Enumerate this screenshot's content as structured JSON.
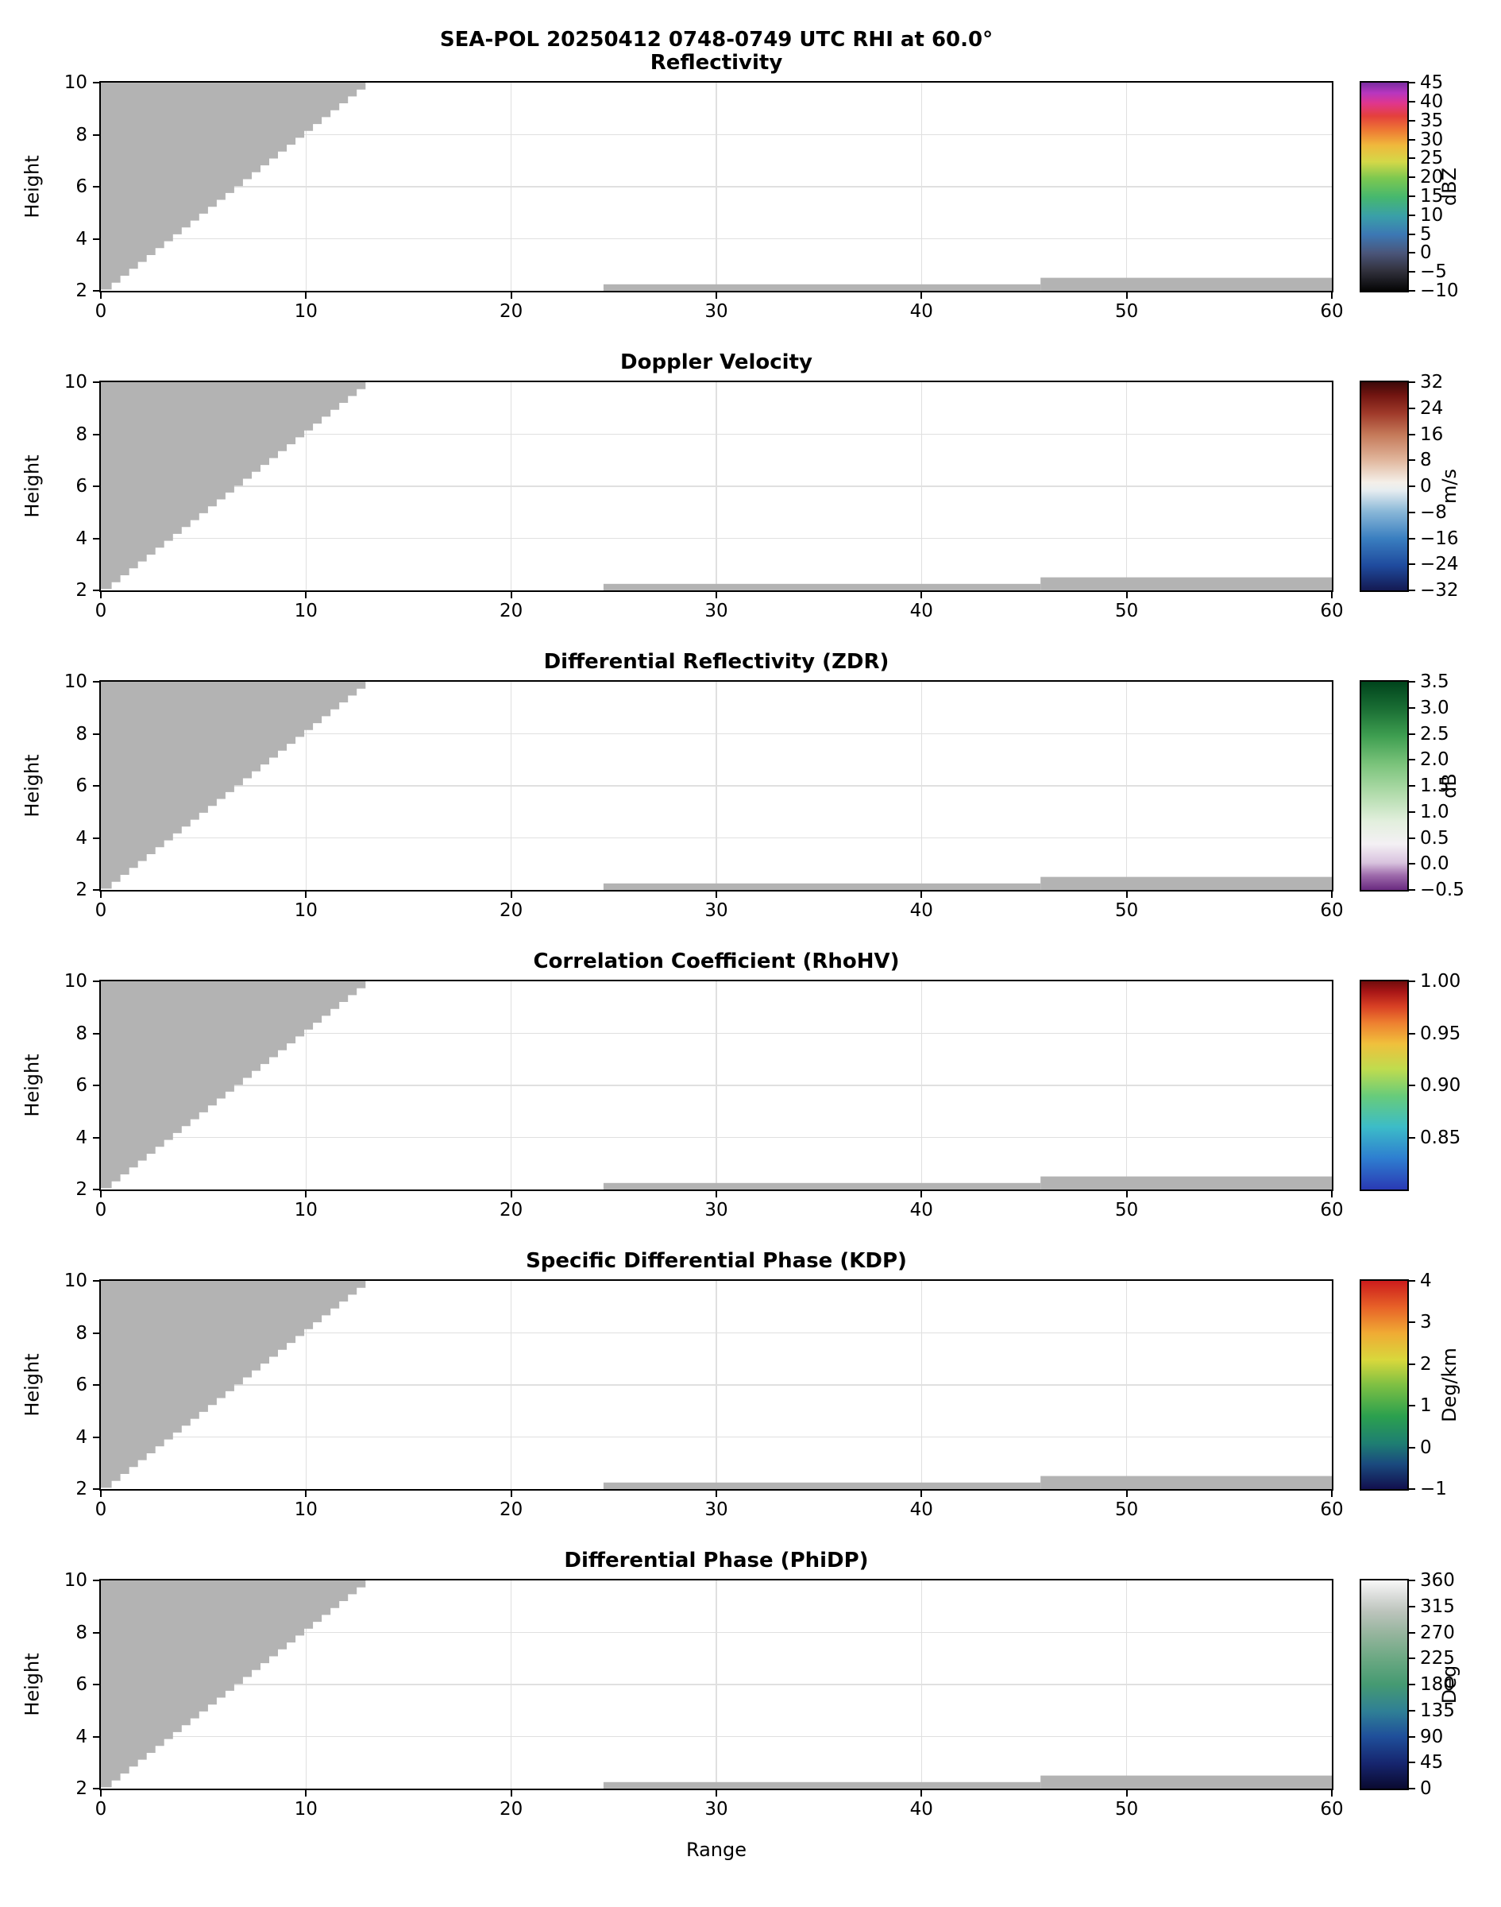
{
  "figure": {
    "suptitle": "SEA-POL 20250412 0748-0749 UTC RHI at 60.0°",
    "xlabel": "Range",
    "background": "#ffffff"
  },
  "chart_data": {
    "type": "heatmap",
    "description": "Six vertically stacked RHI radar cross-section panels (height vs range) sharing identical echo geometry. All echo regions render as uniform light gray (masked / below color scale): a stepped wedge in the upper-left rising from range 0 at height ~2 to range ~13 at height 10, plus a thin echo layer near height 2.0-2.5 spanning ranges ~24.5-60 (slightly deeper beyond range ~46). Each panel has its own colorbar on the right.",
    "x": {
      "label": "Range",
      "lim": [
        0,
        60
      ],
      "ticks": [
        0,
        10,
        20,
        30,
        40,
        50,
        60
      ],
      "tick_labels": [
        "0",
        "10",
        "20",
        "30",
        "40",
        "50",
        "60"
      ]
    },
    "y": {
      "label": "Height",
      "lim": [
        2,
        10
      ],
      "ticks": [
        2,
        4,
        6,
        8,
        10
      ],
      "tick_labels": [
        "2",
        "4",
        "6",
        "8",
        "10"
      ]
    },
    "mask_color": "#b3b3b3",
    "grid_on": true,
    "regions": {
      "wedge": {
        "x_start": 0.1,
        "y_start": 2.05,
        "x_end": 12.9,
        "y_end": 10.0,
        "steps": 30
      },
      "strips": [
        {
          "x0": 24.5,
          "x1": 45.8,
          "y0": 2.0,
          "y1": 2.25
        },
        {
          "x0": 45.8,
          "x1": 60.0,
          "y0": 2.0,
          "y1": 2.5
        }
      ]
    },
    "panels": [
      {
        "title": "Reflectivity",
        "unit": "dBZ",
        "vmin": -10,
        "vmax": 45,
        "cb_ticks": [
          45,
          40,
          35,
          30,
          25,
          20,
          15,
          10,
          5,
          0,
          -5,
          -10
        ],
        "cb_tick_labels": [
          "45",
          "40",
          "35",
          "30",
          "25",
          "20",
          "15",
          "10",
          "5",
          "0",
          "−5",
          "−10"
        ],
        "gradient": [
          [
            "#050505",
            0
          ],
          [
            "#33333f",
            0.1
          ],
          [
            "#4a5579",
            0.18
          ],
          [
            "#3c78b4",
            0.27
          ],
          [
            "#3aa0a8",
            0.36
          ],
          [
            "#46b86e",
            0.45
          ],
          [
            "#7cc850",
            0.54
          ],
          [
            "#d4d848",
            0.62
          ],
          [
            "#f0b83c",
            0.7
          ],
          [
            "#ee7a34",
            0.77
          ],
          [
            "#e4403c",
            0.84
          ],
          [
            "#e0368c",
            0.9
          ],
          [
            "#b836c0",
            0.95
          ],
          [
            "#7a2ea0",
            1
          ]
        ]
      },
      {
        "title": "Doppler Velocity",
        "unit": "m/s",
        "vmin": -32,
        "vmax": 32,
        "cb_ticks": [
          32,
          24,
          16,
          8,
          0,
          -8,
          -16,
          -24,
          -32
        ],
        "cb_tick_labels": [
          "32",
          "24",
          "16",
          "8",
          "0",
          "−8",
          "−16",
          "−24",
          "−32"
        ],
        "gradient": [
          [
            "#141a52",
            0
          ],
          [
            "#1f4b9e",
            0.12
          ],
          [
            "#3a7fc0",
            0.25
          ],
          [
            "#8ab8d8",
            0.38
          ],
          [
            "#e6edf0",
            0.48
          ],
          [
            "#f4efe8",
            0.52
          ],
          [
            "#e0b49a",
            0.63
          ],
          [
            "#c47858",
            0.75
          ],
          [
            "#a03a2a",
            0.85
          ],
          [
            "#701410",
            0.94
          ],
          [
            "#3c0a0a",
            1
          ]
        ]
      },
      {
        "title": "Differential Reflectivity (ZDR)",
        "unit": "dB",
        "vmin": -0.5,
        "vmax": 3.5,
        "cb_ticks": [
          3.5,
          3.0,
          2.5,
          2.0,
          1.5,
          1.0,
          0.5,
          0.0,
          -0.5
        ],
        "cb_tick_labels": [
          "3.5",
          "3.0",
          "2.5",
          "2.0",
          "1.5",
          "1.0",
          "0.5",
          "0.0",
          "−0.5"
        ],
        "gradient": [
          [
            "#6a2a80",
            0
          ],
          [
            "#9e6bab",
            0.07
          ],
          [
            "#d8c2de",
            0.13
          ],
          [
            "#f4f0f4",
            0.22
          ],
          [
            "#e2efdd",
            0.33
          ],
          [
            "#b2dcac",
            0.46
          ],
          [
            "#7cc47c",
            0.6
          ],
          [
            "#3e9e50",
            0.74
          ],
          [
            "#1a6e34",
            0.87
          ],
          [
            "#00441c",
            1
          ]
        ]
      },
      {
        "title": "Correlation Coefficient (RhoHV)",
        "unit": "",
        "vmin": 0.8,
        "vmax": 1.0,
        "cb_ticks": [
          1.0,
          0.95,
          0.9,
          0.85
        ],
        "cb_tick_labels": [
          "1.00",
          "0.95",
          "0.90",
          "0.85"
        ],
        "gradient": [
          [
            "#2a3ab4",
            0
          ],
          [
            "#2e7ed0",
            0.15
          ],
          [
            "#3cbcc8",
            0.3
          ],
          [
            "#68cc7a",
            0.45
          ],
          [
            "#c0dc4e",
            0.58
          ],
          [
            "#f0c03c",
            0.7
          ],
          [
            "#ee8030",
            0.8
          ],
          [
            "#d84024",
            0.88
          ],
          [
            "#a81616",
            0.95
          ],
          [
            "#700c0c",
            1
          ]
        ]
      },
      {
        "title": "Specific Differential Phase (KDP)",
        "unit": "Deg/km",
        "vmin": -1,
        "vmax": 4,
        "cb_ticks": [
          4,
          3,
          2,
          1,
          0,
          -1
        ],
        "cb_tick_labels": [
          "4",
          "3",
          "2",
          "1",
          "0",
          "−1"
        ],
        "gradient": [
          [
            "#12104e",
            0
          ],
          [
            "#1a4a7e",
            0.12
          ],
          [
            "#1e7e72",
            0.22
          ],
          [
            "#2ba04e",
            0.35
          ],
          [
            "#7ec043",
            0.5
          ],
          [
            "#d8d83c",
            0.62
          ],
          [
            "#f0aa34",
            0.75
          ],
          [
            "#e86428",
            0.87
          ],
          [
            "#cc1c1c",
            1
          ]
        ]
      },
      {
        "title": "Differential Phase (PhiDP)",
        "unit": "Deg",
        "vmin": 0,
        "vmax": 360,
        "cb_ticks": [
          360,
          315,
          270,
          225,
          180,
          135,
          90,
          45,
          0
        ],
        "cb_tick_labels": [
          "360",
          "315",
          "270",
          "225",
          "180",
          "135",
          "90",
          "45",
          "0"
        ],
        "gradient": [
          [
            "#0a0a30",
            0
          ],
          [
            "#16256e",
            0.12
          ],
          [
            "#1f4f9a",
            0.25
          ],
          [
            "#2f7f96",
            0.37
          ],
          [
            "#459a72",
            0.5
          ],
          [
            "#6aa882",
            0.62
          ],
          [
            "#94b49c",
            0.74
          ],
          [
            "#bcc4bc",
            0.85
          ],
          [
            "#dcdedc",
            0.93
          ],
          [
            "#f8f8f8",
            1
          ]
        ]
      }
    ]
  }
}
